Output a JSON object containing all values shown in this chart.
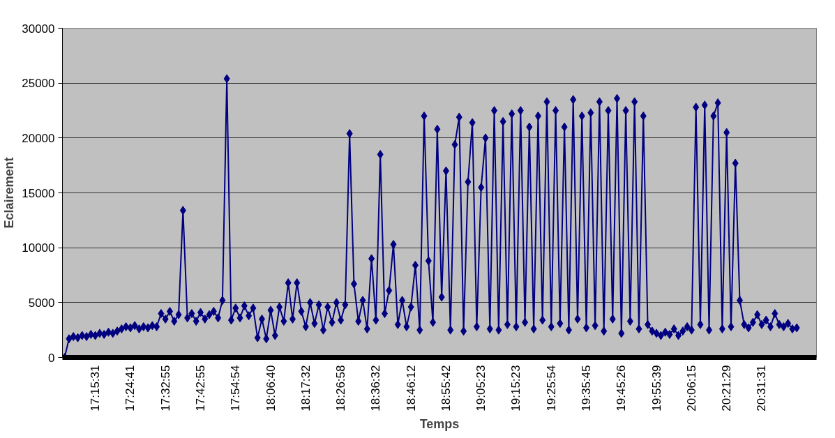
{
  "chart_data": {
    "type": "line",
    "xlabel": "Temps",
    "ylabel": "Eclairement",
    "categories": [
      null,
      null,
      null,
      null,
      null,
      null,
      null,
      "17:15:31",
      null,
      null,
      null,
      null,
      null,
      null,
      null,
      "17:24:41",
      null,
      null,
      null,
      null,
      null,
      null,
      null,
      "17:32:55",
      null,
      null,
      null,
      null,
      null,
      null,
      null,
      "17:42:55",
      null,
      null,
      null,
      null,
      null,
      null,
      null,
      "17:54:54",
      null,
      null,
      null,
      null,
      null,
      null,
      null,
      "18:06:40",
      null,
      null,
      null,
      null,
      null,
      null,
      null,
      "18:17:32",
      null,
      null,
      null,
      null,
      null,
      null,
      null,
      "18:26:58",
      null,
      null,
      null,
      null,
      null,
      null,
      null,
      "18:36:32",
      null,
      null,
      null,
      null,
      null,
      null,
      null,
      "18:46:12",
      null,
      null,
      null,
      null,
      null,
      null,
      null,
      "18:55:42",
      null,
      null,
      null,
      null,
      null,
      null,
      null,
      "19:05:23",
      null,
      null,
      null,
      null,
      null,
      null,
      null,
      "19:15:23",
      null,
      null,
      null,
      null,
      null,
      null,
      null,
      "19:25:54",
      null,
      null,
      null,
      null,
      null,
      null,
      null,
      "19:35:45",
      null,
      null,
      null,
      null,
      null,
      null,
      null,
      "19:45:26",
      null,
      null,
      null,
      null,
      null,
      null,
      null,
      "19:55:39",
      null,
      null,
      null,
      null,
      null,
      null,
      null,
      "20:06:15",
      null,
      null,
      null,
      null,
      null,
      null,
      null,
      "20:21:29",
      null,
      null,
      null,
      null,
      null,
      null,
      null,
      "20:31:31",
      null,
      null,
      null,
      null,
      null,
      null,
      null,
      null
    ],
    "series": [
      {
        "color": "#000080",
        "values": [
          0,
          1700,
          1900,
          1800,
          2000,
          1900,
          2100,
          2000,
          2200,
          2100,
          2300,
          2200,
          2400,
          2600,
          2800,
          2700,
          2900,
          2600,
          2800,
          2700,
          2900,
          2800,
          4000,
          3500,
          4200,
          3300,
          3900,
          13400,
          3600,
          4000,
          3300,
          4100,
          3500,
          3900,
          4200,
          3600,
          5200,
          25400,
          3400,
          4500,
          3600,
          4700,
          3800,
          4500,
          1800,
          3500,
          1700,
          4300,
          2000,
          4600,
          3300,
          6800,
          3500,
          6800,
          4200,
          2800,
          5000,
          3100,
          4800,
          2500,
          4600,
          3200,
          5000,
          3400,
          4800,
          20400,
          6700,
          3300,
          5200,
          2600,
          9000,
          3400,
          18500,
          4000,
          6100,
          10300,
          3000,
          5200,
          2800,
          4600,
          8400,
          2500,
          22000,
          8800,
          3200,
          20800,
          5500,
          17000,
          2500,
          19400,
          21900,
          2400,
          16000,
          21400,
          2800,
          15500,
          20000,
          2600,
          22500,
          2500,
          21500,
          3000,
          22200,
          2800,
          22500,
          3200,
          21000,
          2600,
          22000,
          3400,
          23300,
          2800,
          22500,
          3100,
          21000,
          2500,
          23500,
          3500,
          22000,
          2700,
          22300,
          2900,
          23300,
          2400,
          22500,
          3500,
          23600,
          2200,
          22500,
          3300,
          23300,
          2600,
          22000,
          3000,
          2400,
          2200,
          2000,
          2300,
          2100,
          2600,
          2000,
          2400,
          2800,
          2500,
          22800,
          3000,
          23000,
          2500,
          22000,
          23200,
          2600,
          20500,
          2800,
          17700,
          5200,
          3000,
          2700,
          3200,
          3900,
          3000,
          3400,
          2800,
          4000,
          3000,
          2800,
          3100,
          2600,
          2700
        ]
      }
    ],
    "ylim": [
      0,
      30000
    ],
    "yticks": [
      0,
      5000,
      10000,
      15000,
      20000,
      25000,
      30000
    ],
    "grid": "y",
    "marker": "diamond",
    "line_style": "solid"
  }
}
